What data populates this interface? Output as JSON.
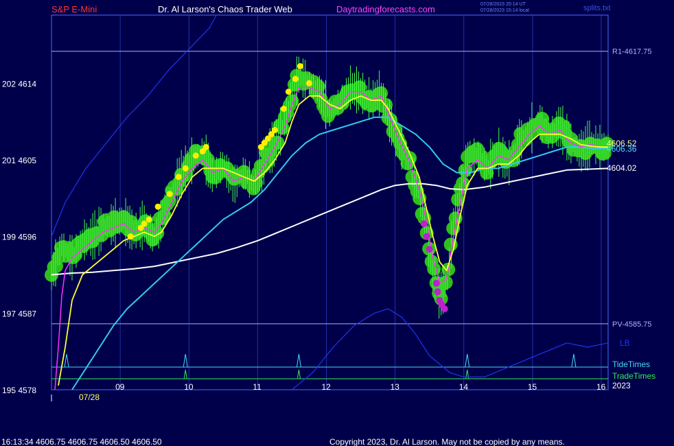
{
  "header": {
    "symbol": "S&P E-Mini",
    "title": "Dr. Al Larson's Chaos Trader Web",
    "site": "Daytradingforecasts.com",
    "stamp_utc": "07/28/2023 20:14 UT",
    "stamp_local": "07/28/2023 15:14 local",
    "file": "splits.txt"
  },
  "footer": {
    "quote": "16:13:34  4606.75 4606.75 4606.50 4606.50",
    "copyright": "Copyright 2023, Dr. Al Larson. May not be copied by any means."
  },
  "colors": {
    "background": "#00004a",
    "frame": "#4a6cff",
    "price_dots": "#2fbf1d",
    "price_bars": "#44ff44",
    "magenta_line": "#ff33ff",
    "yellow_line": "#ffff33",
    "cyan_ma": "#33ccee",
    "white_ma": "#ffffff",
    "blue_line": "#2233ee",
    "tide": "#44ddee",
    "trade": "#33ee55",
    "markers_high": "#ffee00",
    "markers_low": "#bb22cc"
  },
  "chart_data": {
    "type": "line",
    "y_left_labels": [
      {
        "value": 4614,
        "label": "202  4614"
      },
      {
        "value": 4605,
        "label": "201  4605"
      },
      {
        "value": 4596,
        "label": "199  4596"
      },
      {
        "value": 4587,
        "label": "197  4587"
      },
      {
        "value": 4578,
        "label": "195  4578"
      }
    ],
    "ylim": [
      4578,
      4622
    ],
    "xlim": [
      8.0,
      16.1
    ],
    "x_ticks": [
      9,
      10,
      11,
      12,
      13,
      14,
      15,
      16
    ],
    "x_tick_labels": [
      "09",
      "10",
      "11",
      "12",
      "13",
      "14",
      "15",
      "16"
    ],
    "date_label": "07/28",
    "year_label": "2023",
    "levels": [
      {
        "name": "R1-4617.75",
        "value": 4617.75
      },
      {
        "name": "PV-4585.75",
        "value": 4585.75
      }
    ],
    "right_labels": {
      "last_a": "4606.52",
      "last_b": "4606.36",
      "white_ma_last": "4604.02",
      "lb": "LB",
      "tide_label": "TideTimes",
      "trade_label": "TradeTimes"
    },
    "tide_times": [
      8.22,
      9.95,
      11.6,
      14.05,
      15.6
    ],
    "trade_times": [
      9.95,
      11.6,
      14.05
    ],
    "price": {
      "x": [
        8.0,
        8.15,
        8.3,
        8.45,
        8.6,
        8.75,
        8.9,
        9.05,
        9.2,
        9.35,
        9.5,
        9.6,
        9.75,
        9.9,
        10.05,
        10.2,
        10.35,
        10.5,
        10.65,
        10.8,
        10.95,
        11.1,
        11.25,
        11.4,
        11.5,
        11.6,
        11.75,
        11.9,
        12.05,
        12.2,
        12.35,
        12.5,
        12.65,
        12.8,
        12.9,
        13.05,
        13.2,
        13.35,
        13.45,
        13.55,
        13.65,
        13.75,
        13.85,
        13.95,
        14.05,
        14.2,
        14.35,
        14.5,
        14.65,
        14.8,
        14.95,
        15.1,
        15.25,
        15.4,
        15.55,
        15.7,
        15.85,
        16.0,
        16.1
      ],
      "y": [
        4591.5,
        4595.0,
        4593.5,
        4595.5,
        4596.0,
        4597.0,
        4597.5,
        4598.0,
        4596.5,
        4597.5,
        4596.0,
        4598.0,
        4601.0,
        4603.5,
        4605.0,
        4606.0,
        4603.0,
        4604.5,
        4602.0,
        4603.5,
        4602.0,
        4605.0,
        4607.0,
        4609.5,
        4612.5,
        4615.0,
        4614.0,
        4613.0,
        4610.5,
        4612.0,
        4613.5,
        4613.0,
        4612.0,
        4613.0,
        4610.0,
        4607.0,
        4605.0,
        4601.0,
        4597.0,
        4592.0,
        4589.0,
        4590.5,
        4597.0,
        4601.0,
        4605.0,
        4605.5,
        4604.0,
        4606.0,
        4604.5,
        4607.0,
        4608.5,
        4609.5,
        4608.0,
        4609.0,
        4607.0,
        4606.0,
        4607.0,
        4606.5,
        4606.5
      ]
    },
    "magenta_line": {
      "x": [
        8.05,
        8.1,
        8.15,
        8.2,
        8.3,
        8.45,
        8.6,
        8.75,
        8.9,
        9.05,
        9.2,
        9.35,
        9.5,
        9.6,
        9.75,
        9.9,
        10.05,
        10.2,
        10.35,
        10.5,
        10.65,
        10.8,
        10.95,
        11.1,
        11.25,
        11.4,
        11.5,
        11.6,
        11.75,
        11.9,
        12.05,
        12.2,
        12.35,
        12.5,
        12.65,
        12.8,
        12.9,
        13.05,
        13.2,
        13.35,
        13.45,
        13.55,
        13.65,
        13.75,
        13.85,
        13.95,
        14.05,
        14.2,
        14.35,
        14.5,
        14.65,
        14.8,
        14.95,
        15.1,
        15.25,
        15.4,
        15.55,
        15.7,
        15.85,
        16.0,
        16.1
      ],
      "y": [
        4578.0,
        4583.0,
        4589.0,
        4592.0,
        4593.5,
        4594.5,
        4595.5,
        4596.5,
        4597.0,
        4597.5,
        4596.5,
        4597.0,
        4596.5,
        4597.5,
        4600.0,
        4602.5,
        4604.0,
        4605.0,
        4603.5,
        4604.0,
        4602.5,
        4603.0,
        4602.5,
        4604.5,
        4606.5,
        4609.0,
        4611.5,
        4613.5,
        4613.5,
        4613.0,
        4611.0,
        4611.5,
        4613.0,
        4613.0,
        4612.0,
        4612.5,
        4610.5,
        4607.5,
        4605.0,
        4601.5,
        4598.0,
        4593.5,
        4590.5,
        4591.0,
        4596.0,
        4600.0,
        4604.0,
        4605.0,
        4604.0,
        4605.5,
        4605.0,
        4606.5,
        4608.0,
        4609.0,
        4608.0,
        4608.5,
        4607.0,
        4606.5,
        4606.8,
        4606.5,
        4606.5
      ]
    },
    "yellow_line": {
      "x": [
        8.1,
        8.2,
        8.3,
        8.45,
        8.6,
        8.75,
        8.9,
        9.05,
        9.2,
        9.35,
        9.5,
        9.6,
        9.75,
        9.9,
        10.05,
        10.2,
        10.35,
        10.5,
        10.65,
        10.8,
        10.95,
        11.1,
        11.25,
        11.4,
        11.5,
        11.6,
        11.75,
        11.9,
        12.05,
        12.2,
        12.35,
        12.5,
        12.65,
        12.8,
        12.9,
        13.05,
        13.2,
        13.35,
        13.45,
        13.55,
        13.65,
        13.75,
        13.85,
        13.95,
        14.05,
        14.2,
        14.35,
        14.5,
        14.65,
        14.8,
        14.95,
        15.1,
        15.25,
        15.4,
        15.55,
        15.7,
        15.85,
        16.0,
        16.1
      ],
      "y": [
        4578.5,
        4583.0,
        4588.5,
        4591.5,
        4592.5,
        4593.5,
        4594.5,
        4595.5,
        4596.0,
        4596.5,
        4596.0,
        4596.5,
        4598.5,
        4601.0,
        4603.0,
        4604.0,
        4604.0,
        4604.0,
        4603.5,
        4603.0,
        4602.5,
        4603.5,
        4605.0,
        4607.0,
        4609.5,
        4611.5,
        4612.5,
        4612.5,
        4611.5,
        4611.0,
        4612.0,
        4612.5,
        4612.0,
        4612.0,
        4611.0,
        4608.5,
        4606.0,
        4603.0,
        4599.5,
        4596.0,
        4593.0,
        4592.0,
        4594.5,
        4598.5,
        4602.0,
        4604.0,
        4604.0,
        4604.5,
        4604.5,
        4605.5,
        4607.0,
        4608.0,
        4608.0,
        4608.0,
        4607.5,
        4606.8,
        4606.6,
        4606.5,
        4606.5
      ]
    },
    "cyan_ma": {
      "x": [
        8.3,
        8.5,
        8.7,
        8.9,
        9.1,
        9.3,
        9.5,
        9.7,
        9.9,
        10.1,
        10.3,
        10.5,
        10.7,
        10.9,
        11.1,
        11.3,
        11.5,
        11.7,
        11.9,
        12.1,
        12.3,
        12.5,
        12.7,
        12.9,
        13.1,
        13.3,
        13.5,
        13.7,
        13.9,
        14.1,
        14.3,
        14.5,
        14.7,
        14.9,
        15.1,
        15.3,
        15.5,
        15.7,
        15.9,
        16.1
      ],
      "y": [
        4578.0,
        4580.5,
        4583.0,
        4585.5,
        4587.5,
        4589.0,
        4590.5,
        4592.0,
        4593.5,
        4595.0,
        4596.5,
        4598.0,
        4599.0,
        4600.0,
        4601.5,
        4603.5,
        4605.5,
        4607.0,
        4608.0,
        4608.5,
        4609.0,
        4609.5,
        4610.0,
        4610.0,
        4609.0,
        4608.0,
        4606.5,
        4604.5,
        4603.5,
        4603.5,
        4604.0,
        4604.0,
        4604.5,
        4605.0,
        4605.5,
        4606.0,
        4606.5,
        4606.5,
        4606.3,
        4606.4
      ]
    },
    "white_ma": {
      "x": [
        8.0,
        8.3,
        8.6,
        8.9,
        9.2,
        9.5,
        9.8,
        10.1,
        10.4,
        10.7,
        11.0,
        11.3,
        11.6,
        11.9,
        12.2,
        12.5,
        12.8,
        13.0,
        13.2,
        13.4,
        13.6,
        13.8,
        14.0,
        14.3,
        14.6,
        14.9,
        15.2,
        15.5,
        15.8,
        16.1
      ],
      "y": [
        4591.5,
        4591.7,
        4591.8,
        4592.0,
        4592.2,
        4592.5,
        4593.0,
        4593.5,
        4594.0,
        4594.7,
        4595.5,
        4596.5,
        4597.5,
        4598.5,
        4599.5,
        4600.5,
        4601.5,
        4602.0,
        4602.2,
        4602.2,
        4602.0,
        4601.6,
        4601.5,
        4601.8,
        4602.3,
        4602.8,
        4603.3,
        4603.8,
        4603.9,
        4604.0
      ]
    },
    "blue_line": {
      "x": [
        8.0,
        8.2,
        8.5,
        8.8,
        9.1,
        9.4,
        9.7,
        10.0,
        10.3,
        10.4
      ],
      "y": [
        4596.0,
        4600.0,
        4604.0,
        4607.0,
        4610.0,
        4612.5,
        4615.5,
        4618.0,
        4620.5,
        4622.0
      ]
    },
    "lb_line": {
      "x": [
        11.5,
        11.8,
        12.1,
        12.4,
        12.7,
        12.9,
        13.1,
        13.3,
        13.5,
        13.8,
        14.0,
        14.3,
        14.6,
        14.9,
        15.2,
        15.5,
        15.8,
        16.1
      ],
      "y": [
        4578.0,
        4580.0,
        4583.0,
        4585.5,
        4587.0,
        4587.5,
        4586.5,
        4584.5,
        4582.0,
        4580.0,
        4579.5,
        4579.5,
        4580.5,
        4581.5,
        4582.5,
        4583.5,
        4583.0,
        4583.5
      ]
    },
    "markers_high": {
      "x": [
        9.15,
        9.3,
        9.35,
        9.42,
        9.55,
        9.72,
        9.85,
        9.95,
        10.1,
        10.2,
        10.25,
        11.05,
        11.1,
        11.15,
        11.2,
        11.25,
        11.38,
        11.45,
        11.55,
        11.62,
        11.75
      ],
      "y": [
        4596.0,
        4597.0,
        4597.5,
        4598.0,
        4599.5,
        4601.0,
        4603.0,
        4604.0,
        4605.5,
        4606.0,
        4606.5,
        4606.5,
        4607.0,
        4607.5,
        4608.0,
        4608.5,
        4611.0,
        4613.0,
        4614.5,
        4616.0,
        4614.0
      ]
    },
    "markers_low": {
      "x": [
        13.42,
        13.46,
        13.5,
        13.6,
        13.62,
        13.65,
        13.68,
        13.72
      ],
      "y": [
        4597.5,
        4596.0,
        4594.5,
        4590.5,
        4589.5,
        4588.5,
        4588.0,
        4587.5
      ]
    }
  }
}
